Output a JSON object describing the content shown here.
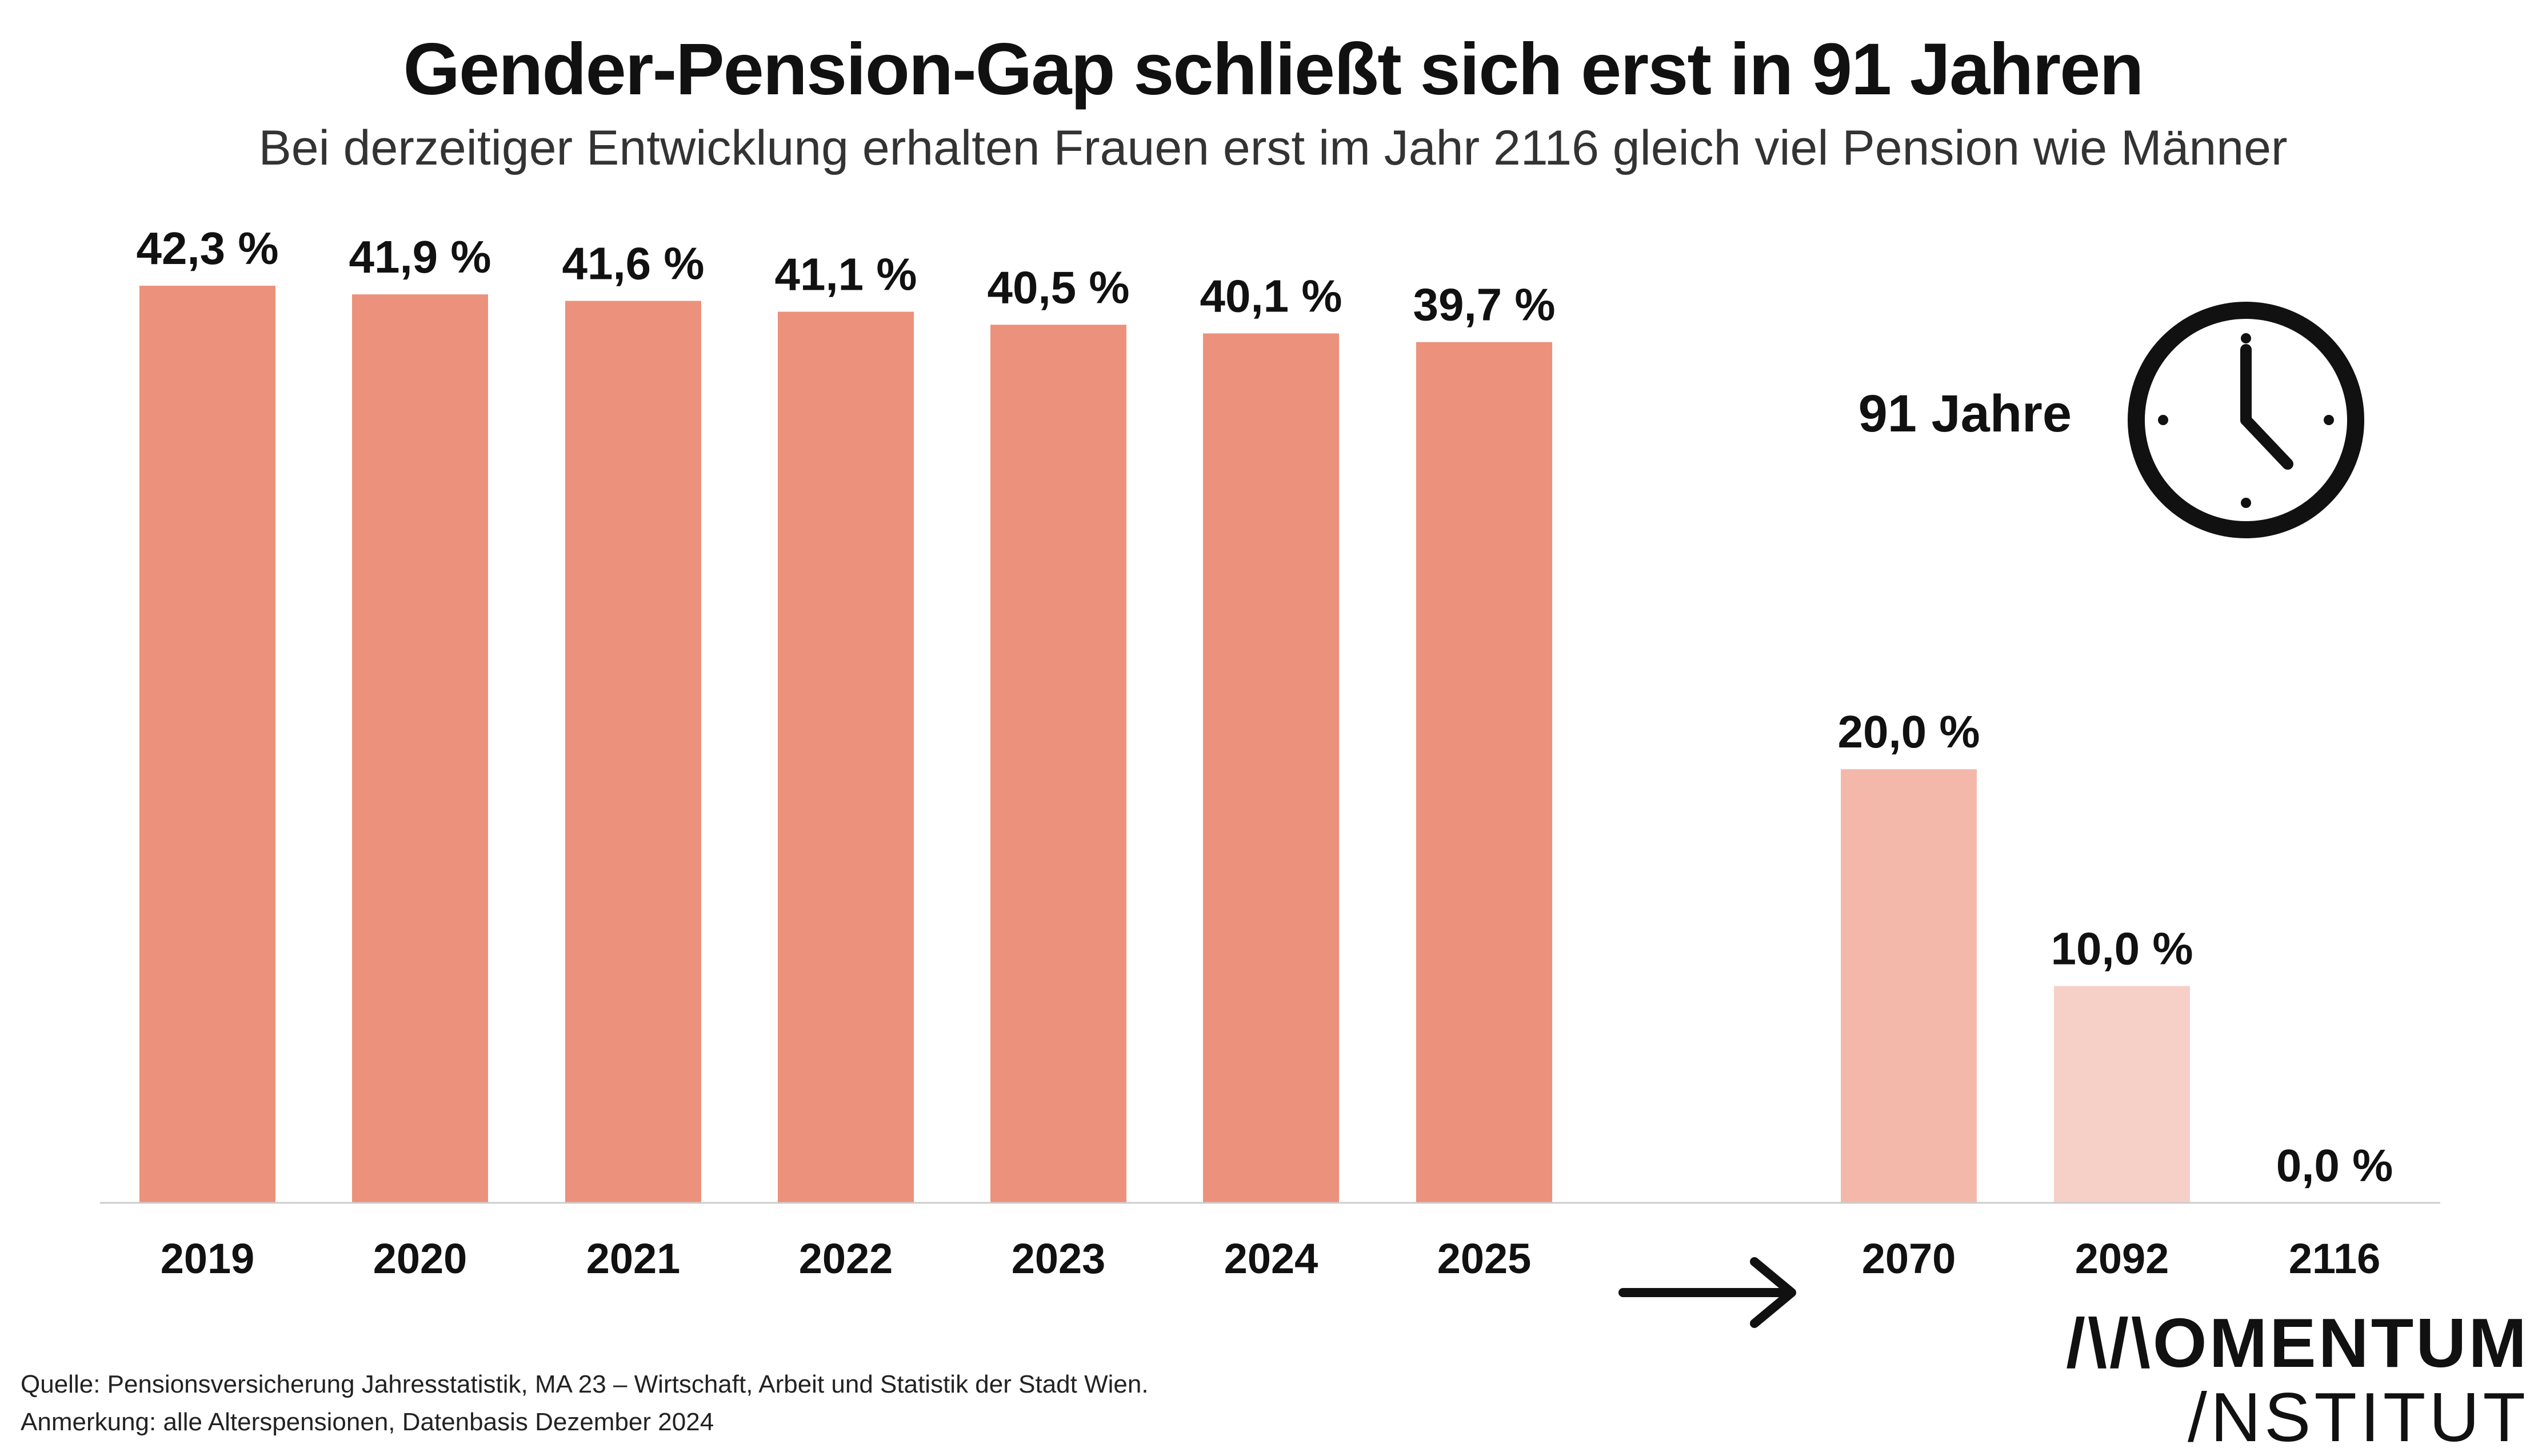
{
  "chart_data": {
    "type": "bar",
    "title": "Gender-Pension-Gap schließt sich erst in 91 Jahren",
    "subtitle": "Bei derzeitiger Entwicklung erhalten Frauen erst im Jahr 2116 gleich viel Pension wie Männer",
    "categories": [
      "2019",
      "2020",
      "2021",
      "2022",
      "2023",
      "2024",
      "2025",
      "2070",
      "2092",
      "2116"
    ],
    "values": [
      42.3,
      41.9,
      41.6,
      41.1,
      40.5,
      40.1,
      39.7,
      20.0,
      10.0,
      0.0
    ],
    "value_labels": [
      "42,3 %",
      "41,9 %",
      "41,6 %",
      "41,1 %",
      "40,5 %",
      "40,1 %",
      "39,7 %",
      "20,0 %",
      "10,0 %",
      "0,0 %"
    ],
    "bar_colors": [
      "#ec917c",
      "#ec917c",
      "#ec917c",
      "#ec917c",
      "#ec917c",
      "#ec917c",
      "#ec917c",
      "#f3b8aa",
      "#f6d0c7",
      "#f6d0c7"
    ],
    "ylim": [
      0,
      42.3
    ],
    "grid": false,
    "xlabel": "",
    "ylabel": "",
    "annotation": "91 Jahre",
    "annotation_icon": "clock-icon",
    "axis_break_icon": "arrow-right-icon"
  },
  "footer": {
    "source": "Quelle: Pensionsversicherung Jahresstatistik, MA 23 – Wirtschaft, Arbeit und Statistik der Stadt Wien.",
    "note": "Anmerkung: alle Alterspensionen, Datenbasis Dezember 2024"
  },
  "logo": {
    "line1": "/\\/\\OMENTUM",
    "line2": "/NSTITUT"
  }
}
